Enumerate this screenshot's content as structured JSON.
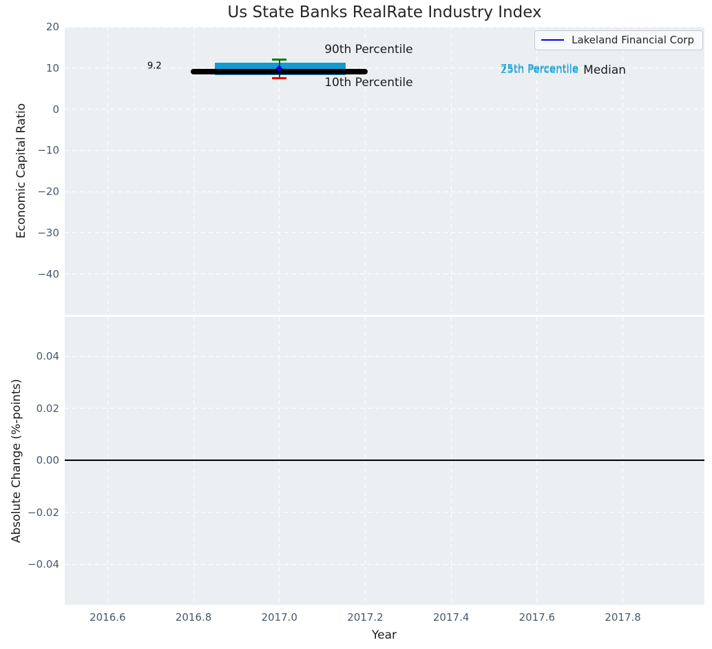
{
  "title": "Us State Banks RealRate Industry Index",
  "chart_data": [
    {
      "type": "box",
      "panel": "top",
      "title": "Us State Banks RealRate Industry Index",
      "ylabel": "Economic Capital Ratio",
      "xlim": [
        2016.5,
        2017.99
      ],
      "ylim": [
        -49.9,
        20
      ],
      "grid": true,
      "yticks": {
        "values": [
          20,
          10,
          0,
          -10,
          -20,
          -30,
          -40
        ],
        "labels": [
          "20",
          "10",
          "0",
          "−10",
          "−20",
          "−30",
          "−40"
        ]
      },
      "legend": {
        "label": "Lakeland Financial Corp",
        "line_color": "#0000EE",
        "position": "upper right"
      },
      "box": {
        "x_center": 2017.0,
        "median": 9.2,
        "q1": 8.3,
        "q3": 11.3,
        "p10": 7.5,
        "p90": 12.1,
        "box_x_range": [
          2016.85,
          2017.155
        ],
        "median_x_range": [
          2016.8,
          2017.2
        ],
        "cap_half_width": 0.017,
        "box_color": "#149BD2",
        "median_color": "#000000",
        "p90_cap_color": "#008000",
        "p10_cap_color": "#E80000",
        "whisker_color": "#3a3a3a"
      },
      "company_point": {
        "label": "Lakeland Financial Corp",
        "x": 2017.0,
        "y": 9.8,
        "color": "#0A0AD0",
        "marker": "diamond"
      },
      "annotations": [
        {
          "text": "9.2",
          "x": 2016.709,
          "y": 10.55,
          "color": "#000000",
          "size": 13,
          "anchor": "center"
        },
        {
          "text": "90th Percentile",
          "x": 2017.105,
          "y": 14.4,
          "color": "#1a1a1a",
          "size": 17,
          "anchor": "left"
        },
        {
          "text": "10th Percentile",
          "x": 2017.105,
          "y": 6.5,
          "color": "#1a1a1a",
          "size": 17,
          "anchor": "left"
        },
        {
          "text": "75th Percentile",
          "x": 2017.515,
          "y": 10.05,
          "color": "#179FD8",
          "size": 15,
          "anchor": "left"
        },
        {
          "text": "25th Percentile",
          "x": 2017.515,
          "y": 9.6,
          "color": "#179FD8",
          "size": 15,
          "anchor": "left"
        },
        {
          "text": "Median",
          "x": 2017.708,
          "y": 9.5,
          "color": "#1a1a1a",
          "size": 17,
          "anchor": "left"
        }
      ]
    },
    {
      "type": "line",
      "panel": "bottom",
      "ylabel": "Absolute Change (%-points)",
      "xlabel": "Year",
      "xlim": [
        2016.5,
        2017.99
      ],
      "ylim": [
        -0.0555,
        0.0552
      ],
      "grid": true,
      "yticks": {
        "values": [
          0.04,
          0.02,
          0,
          -0.02,
          -0.04
        ],
        "labels": [
          "0.04",
          "0.02",
          "0.00",
          "−0.02",
          "−0.04"
        ]
      },
      "xticks": {
        "values": [
          2016.6,
          2016.8,
          2017.0,
          2017.2,
          2017.4,
          2017.6,
          2017.8
        ],
        "labels": [
          "2016.6",
          "2016.8",
          "2017.0",
          "2017.2",
          "2017.4",
          "2017.6",
          "2017.8"
        ]
      },
      "zero_line": {
        "y": 0.0,
        "color": "#000000"
      },
      "series": [
        {
          "name": "Absolute Change",
          "x": [
            2016.5,
            2017.99
          ],
          "y": [
            0.0,
            0.0
          ],
          "color": "#000000"
        }
      ]
    }
  ]
}
